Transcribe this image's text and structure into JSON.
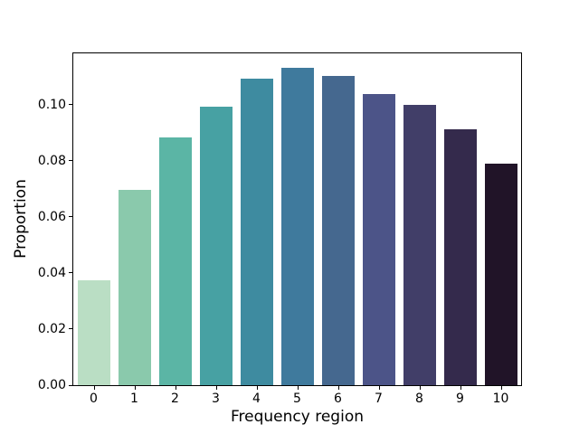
{
  "figure": {
    "background": "#ffffff",
    "axis_color": "#000000"
  },
  "chart_data": {
    "type": "bar",
    "title": "",
    "xlabel": "Frequency region",
    "ylabel": "Proportion",
    "categories": [
      "0",
      "1",
      "2",
      "3",
      "4",
      "5",
      "6",
      "7",
      "8",
      "9",
      "10"
    ],
    "values": [
      0.0374,
      0.0697,
      0.0883,
      0.0992,
      0.1091,
      0.1129,
      0.1102,
      0.1036,
      0.0998,
      0.0912,
      0.079
    ],
    "bar_colors": [
      "#badec4",
      "#8ac9ac",
      "#5bb5a5",
      "#47a1a3",
      "#3e8ba0",
      "#3f7a9d",
      "#45688f",
      "#4c5488",
      "#413e68",
      "#342a4c",
      "#211428"
    ],
    "bar_width_fraction": 0.8,
    "ylim": [
      0,
      0.1182
    ],
    "yticks": [
      0,
      0.02,
      0.04,
      0.06,
      0.08,
      0.1
    ],
    "ytick_labels": [
      "0.00",
      "0.02",
      "0.04",
      "0.06",
      "0.08",
      "0.10"
    ],
    "grid": false,
    "legend": "none"
  }
}
